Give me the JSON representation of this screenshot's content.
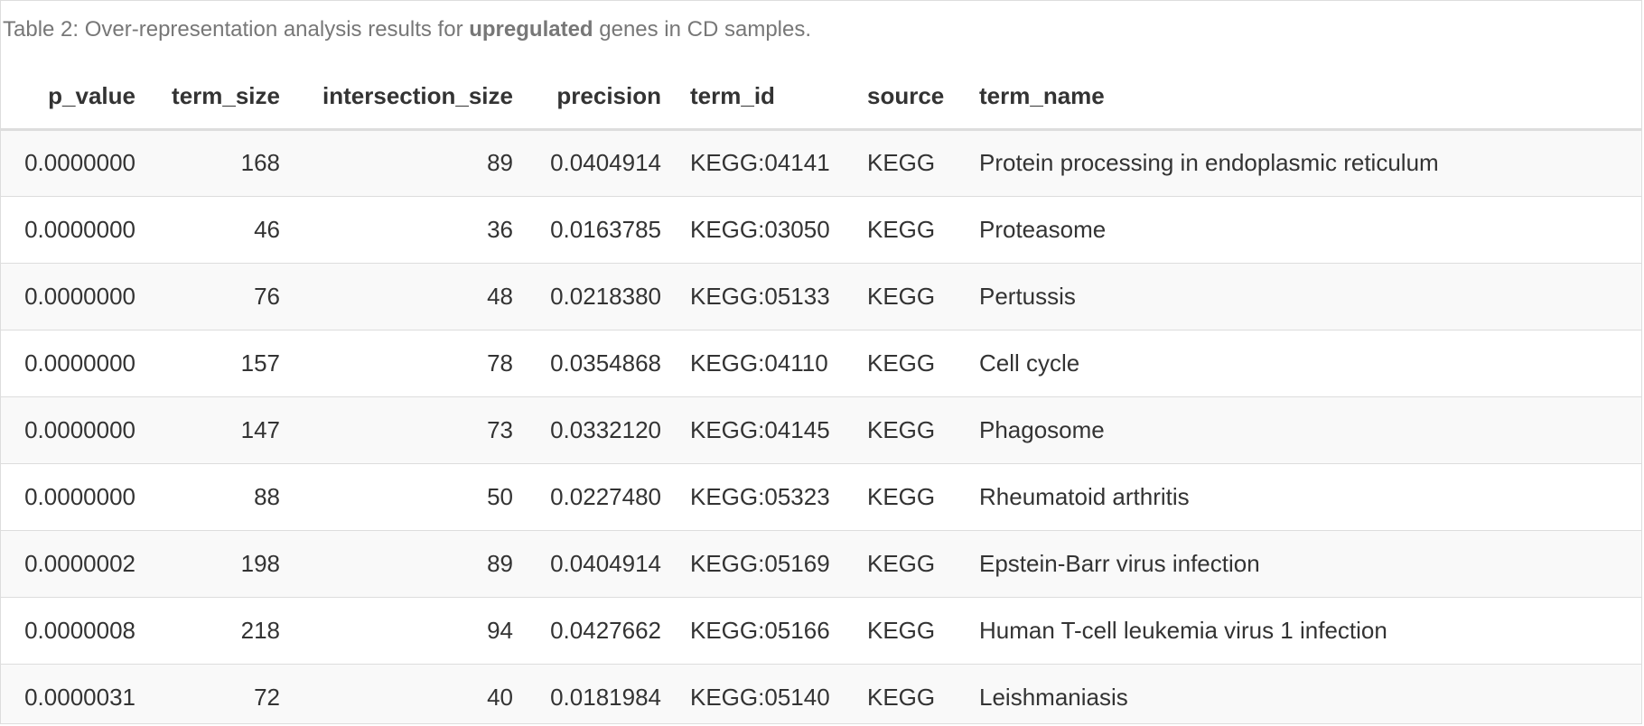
{
  "caption": {
    "prefix": "Table 2: Over-representation analysis results for ",
    "emphasis": "upregulated",
    "suffix": " genes in CD samples."
  },
  "columns": [
    "p_value",
    "term_size",
    "intersection_size",
    "precision",
    "term_id",
    "source",
    "term_name"
  ],
  "rows": [
    [
      "0.0000000",
      "168",
      "89",
      "0.0404914",
      "KEGG:04141",
      "KEGG",
      "Protein processing in endoplasmic reticulum"
    ],
    [
      "0.0000000",
      "46",
      "36",
      "0.0163785",
      "KEGG:03050",
      "KEGG",
      "Proteasome"
    ],
    [
      "0.0000000",
      "76",
      "48",
      "0.0218380",
      "KEGG:05133",
      "KEGG",
      "Pertussis"
    ],
    [
      "0.0000000",
      "157",
      "78",
      "0.0354868",
      "KEGG:04110",
      "KEGG",
      "Cell cycle"
    ],
    [
      "0.0000000",
      "147",
      "73",
      "0.0332120",
      "KEGG:04145",
      "KEGG",
      "Phagosome"
    ],
    [
      "0.0000000",
      "88",
      "50",
      "0.0227480",
      "KEGG:05323",
      "KEGG",
      "Rheumatoid arthritis"
    ],
    [
      "0.0000002",
      "198",
      "89",
      "0.0404914",
      "KEGG:05169",
      "KEGG",
      "Epstein-Barr virus infection"
    ],
    [
      "0.0000008",
      "218",
      "94",
      "0.0427662",
      "KEGG:05166",
      "KEGG",
      "Human T-cell leukemia virus 1 infection"
    ],
    [
      "0.0000031",
      "72",
      "40",
      "0.0181984",
      "KEGG:05140",
      "KEGG",
      "Leishmaniasis"
    ]
  ]
}
